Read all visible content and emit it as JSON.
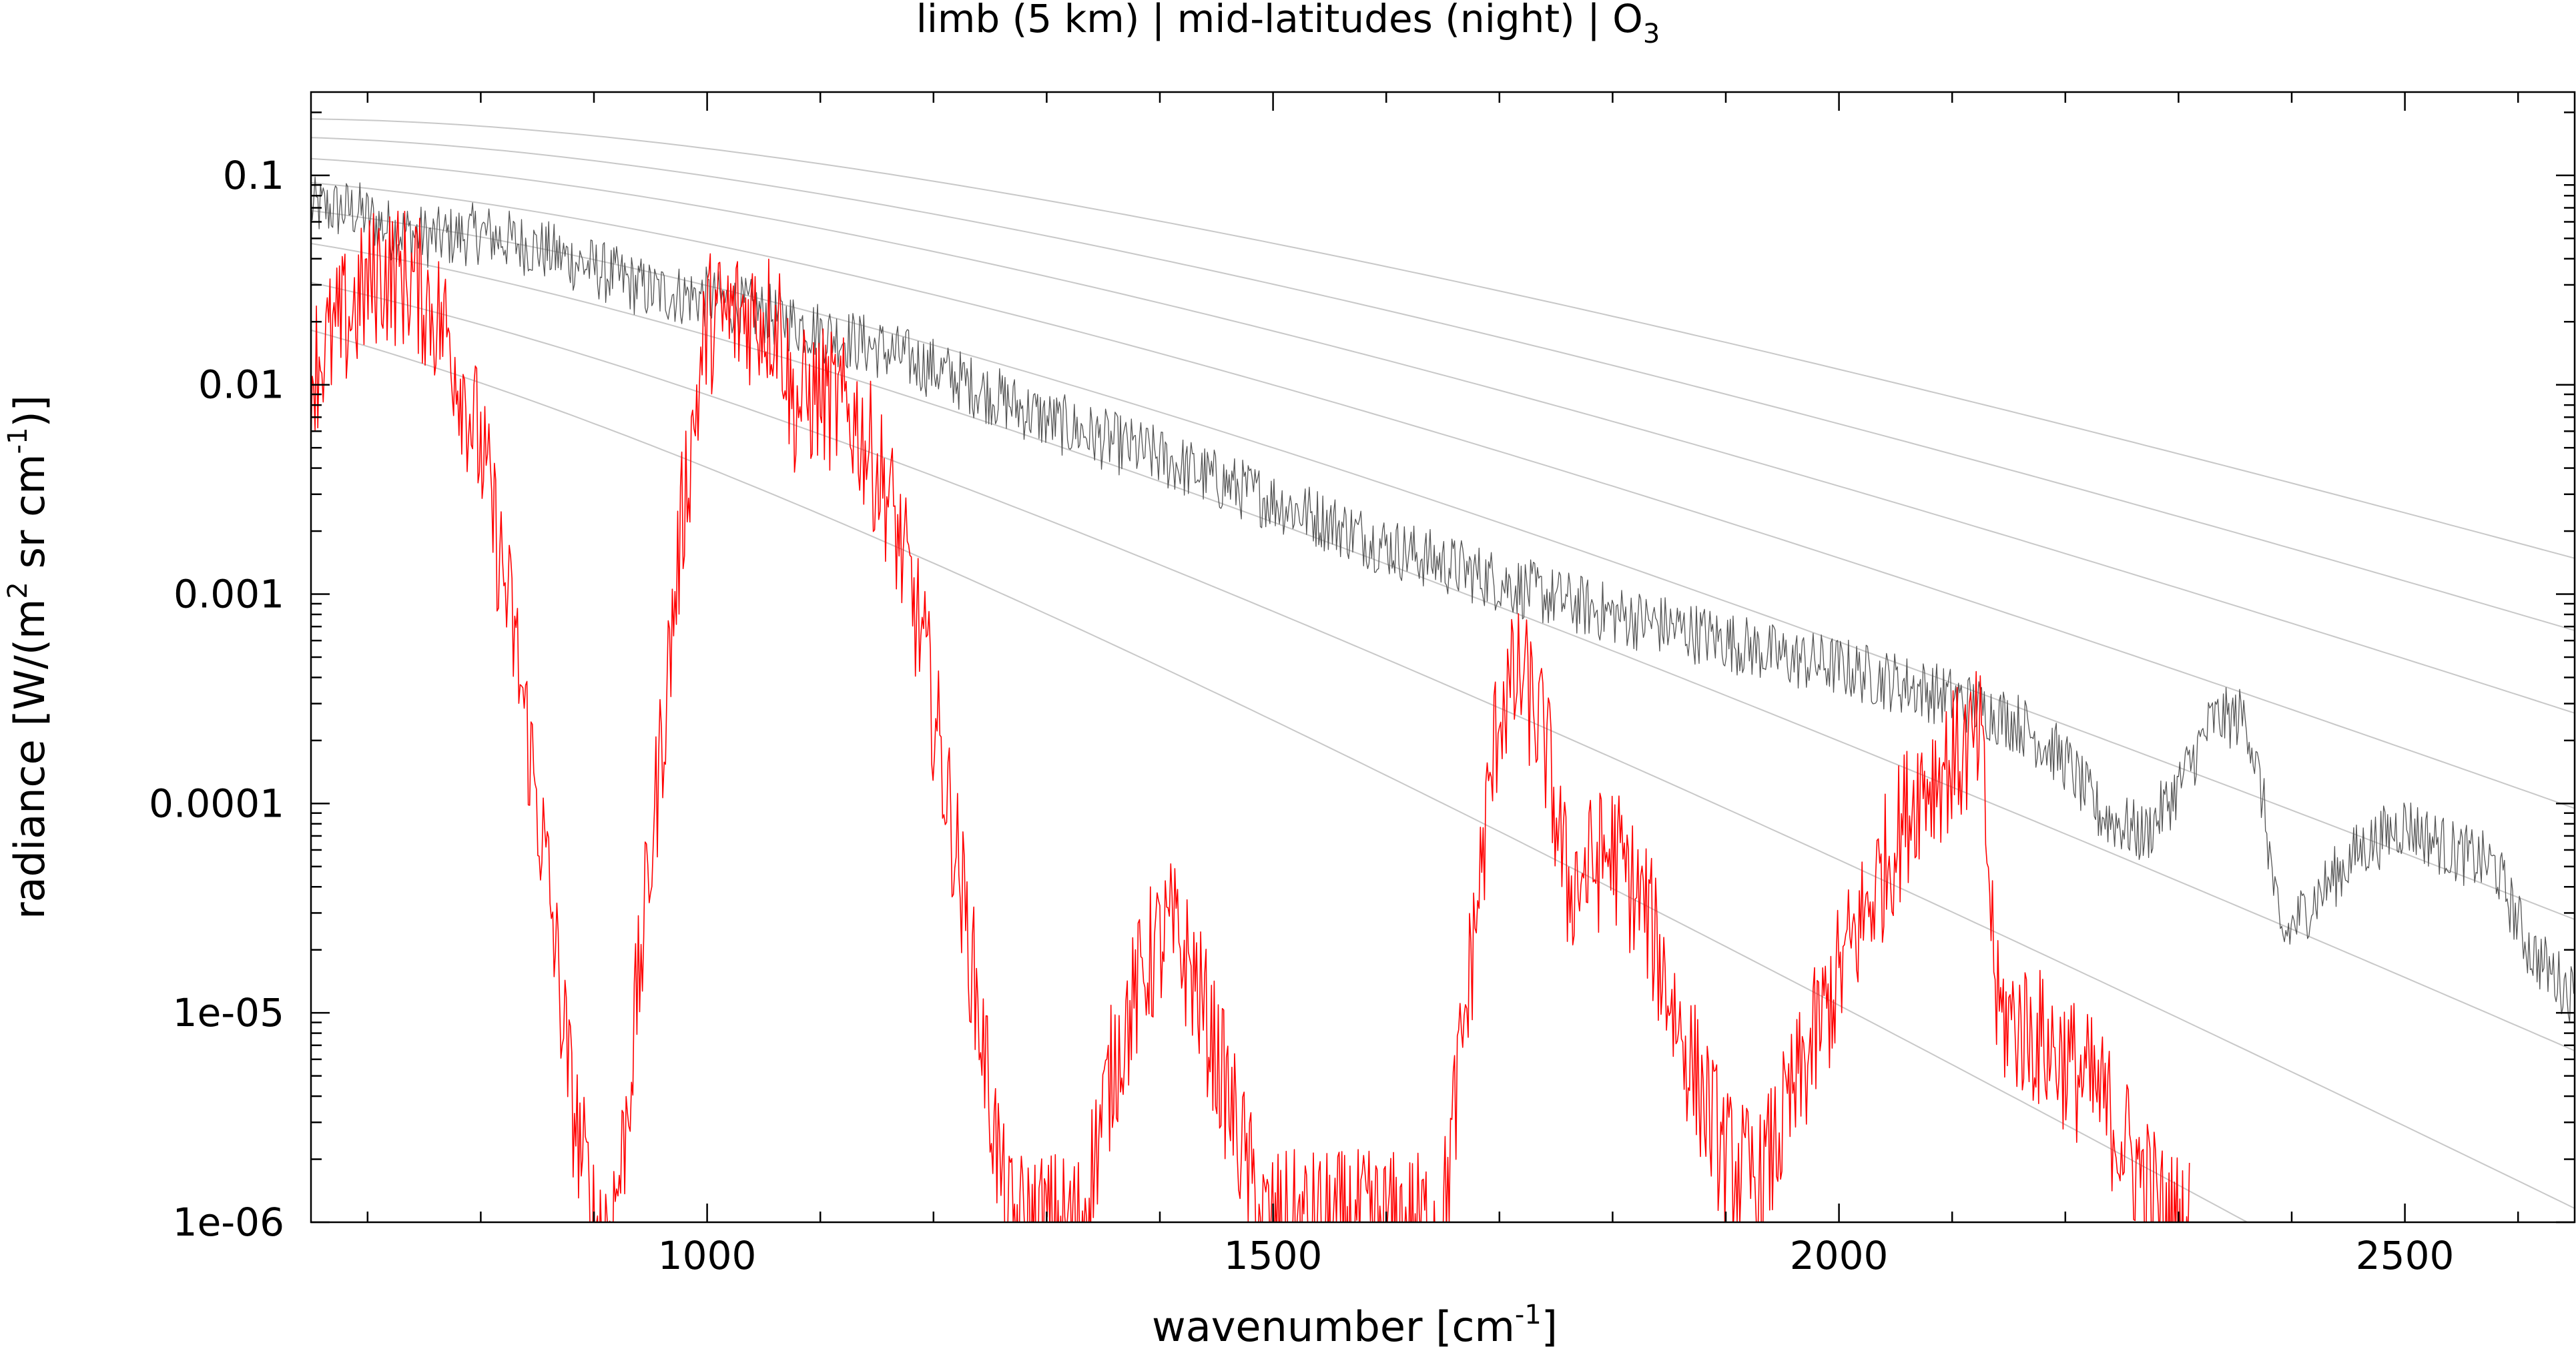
{
  "chart_data": {
    "type": "line",
    "title": {
      "prefix": "limb (5 km) | mid-latitudes (night) | O",
      "subscript": "3"
    },
    "xlabel": {
      "prefix": "wavenumber [cm",
      "superscript": "-1",
      "suffix": "]"
    },
    "ylabel": {
      "part1": "radiance [W/(m",
      "sup1": "2",
      "part2": " sr cm",
      "sup2": "-1",
      "part3": ")]"
    },
    "x_scale": "linear",
    "y_scale": "log",
    "xlim": [
      650,
      2650
    ],
    "ylim": [
      1e-06,
      0.25
    ],
    "x_ticks": [
      {
        "value": 1000,
        "label": "1000"
      },
      {
        "value": 1500,
        "label": "1500"
      },
      {
        "value": 2000,
        "label": "2000"
      },
      {
        "value": 2500,
        "label": "2500"
      }
    ],
    "y_ticks": [
      {
        "value": 0.1,
        "label": "0.1"
      },
      {
        "value": 0.01,
        "label": "0.01"
      },
      {
        "value": 0.001,
        "label": "0.001"
      },
      {
        "value": 0.0001,
        "label": "0.0001"
      },
      {
        "value": 1e-05,
        "label": "1e-05"
      },
      {
        "value": 1e-06,
        "label": "1e-06"
      }
    ],
    "grid": false,
    "legend": "none",
    "reference_curves": {
      "description": "Planck blackbody reference curves (light grey)",
      "temperatures_K": [
        180,
        200,
        220,
        240,
        260,
        280,
        300,
        320
      ],
      "color": "#c8c8c8"
    },
    "series": [
      {
        "color": "#555555",
        "points": [
          [
            650,
            0.07
          ],
          [
            690,
            0.068
          ],
          [
            720,
            0.055
          ],
          [
            760,
            0.05
          ],
          [
            800,
            0.053
          ],
          [
            850,
            0.045
          ],
          [
            900,
            0.036
          ],
          [
            950,
            0.028
          ],
          [
            1000,
            0.026
          ],
          [
            1050,
            0.022
          ],
          [
            1100,
            0.018
          ],
          [
            1150,
            0.015
          ],
          [
            1200,
            0.012
          ],
          [
            1250,
            0.009
          ],
          [
            1300,
            0.0068
          ],
          [
            1350,
            0.0055
          ],
          [
            1400,
            0.0045
          ],
          [
            1450,
            0.0035
          ],
          [
            1500,
            0.0028
          ],
          [
            1550,
            0.0022
          ],
          [
            1600,
            0.0017
          ],
          [
            1650,
            0.0014
          ],
          [
            1700,
            0.00115
          ],
          [
            1750,
            0.00095
          ],
          [
            1800,
            0.0008
          ],
          [
            1850,
            0.0007
          ],
          [
            1900,
            0.0006
          ],
          [
            1950,
            0.0005
          ],
          [
            2000,
            0.00045
          ],
          [
            2050,
            0.00038
          ],
          [
            2100,
            0.00032
          ],
          [
            2130,
            0.00028
          ],
          [
            2160,
            0.00024
          ],
          [
            2200,
            0.00016
          ],
          [
            2230,
            9e-05
          ],
          [
            2270,
            7e-05
          ],
          [
            2300,
            0.00012
          ],
          [
            2330,
            0.00025
          ],
          [
            2360,
            0.00026
          ],
          [
            2375,
            0.0001
          ],
          [
            2390,
            2.2e-05
          ],
          [
            2420,
            3.5e-05
          ],
          [
            2460,
            6e-05
          ],
          [
            2500,
            8e-05
          ],
          [
            2540,
            6e-05
          ],
          [
            2580,
            5e-05
          ],
          [
            2610,
            2e-05
          ],
          [
            2650,
            1.2e-05
          ]
        ],
        "noise_amplitude_decades": 0.15
      },
      {
        "color": "#ff0000",
        "points": [
          [
            650,
            0.012
          ],
          [
            680,
            0.02
          ],
          [
            710,
            0.035
          ],
          [
            740,
            0.032
          ],
          [
            770,
            0.018
          ],
          [
            800,
            0.005
          ],
          [
            830,
            0.0006
          ],
          [
            860,
            4e-05
          ],
          [
            880,
            4e-06
          ],
          [
            900,
            1e-06
          ],
          [
            915,
            1e-06
          ],
          [
            925,
            2e-06
          ],
          [
            940,
            1.5e-05
          ],
          [
            960,
            0.0002
          ],
          [
            980,
            0.003
          ],
          [
            1000,
            0.02
          ],
          [
            1040,
            0.022
          ],
          [
            1065,
            0.02
          ],
          [
            1075,
            0.008
          ],
          [
            1100,
            0.009
          ],
          [
            1130,
            0.007
          ],
          [
            1160,
            0.003
          ],
          [
            1190,
            0.0006
          ],
          [
            1220,
            6e-05
          ],
          [
            1250,
            4e-06
          ],
          [
            1265,
            1e-06
          ],
          [
            1330,
            1e-06
          ],
          [
            1360,
            6e-06
          ],
          [
            1390,
            1.8e-05
          ],
          [
            1410,
            2.5e-05
          ],
          [
            1430,
            1.5e-05
          ],
          [
            1460,
            4e-06
          ],
          [
            1490,
            1e-06
          ],
          [
            1650,
            1e-06
          ],
          [
            1670,
            1e-05
          ],
          [
            1700,
            0.0003
          ],
          [
            1720,
            0.0004
          ],
          [
            1740,
            0.0002
          ],
          [
            1760,
            4e-05
          ],
          [
            1800,
            6e-05
          ],
          [
            1830,
            3e-05
          ],
          [
            1860,
            8e-06
          ],
          [
            1900,
            2e-06
          ],
          [
            1930,
            1.5e-06
          ],
          [
            1960,
            4e-06
          ],
          [
            2000,
            1.5e-05
          ],
          [
            2040,
            5e-05
          ],
          [
            2070,
            0.00012
          ],
          [
            2100,
            0.00016
          ],
          [
            2125,
            0.0002
          ],
          [
            2140,
            1e-05
          ],
          [
            2170,
            8e-06
          ],
          [
            2200,
            6e-06
          ],
          [
            2230,
            4e-06
          ],
          [
            2260,
            2e-06
          ],
          [
            2290,
            1e-06
          ],
          [
            2310,
            1e-06
          ]
        ],
        "noise_amplitude_decades": 0.35
      }
    ]
  }
}
